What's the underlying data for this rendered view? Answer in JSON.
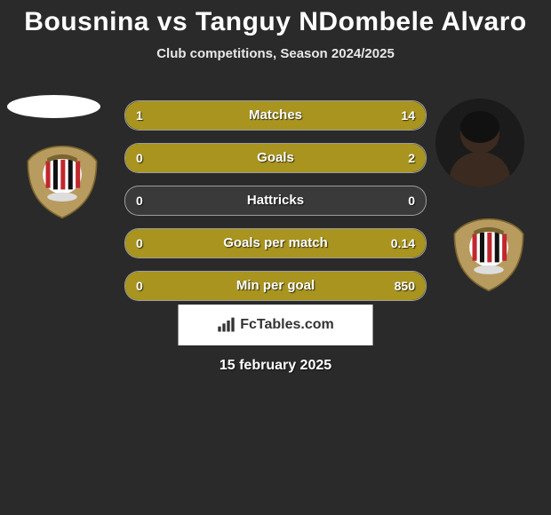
{
  "title": "Bousnina vs Tanguy NDombele Alvaro",
  "subtitle": "Club competitions, Season 2024/2025",
  "date": "15 february 2025",
  "brand": "FcTables.com",
  "colors": {
    "bar_fill": "#a8941f",
    "bg": "#2a2a2a",
    "text": "#ffffff"
  },
  "player1": {
    "name": "Bousnina",
    "avatar": "placeholder-ellipse",
    "club": "OGC Nice"
  },
  "player2": {
    "name": "Tanguy NDombele Alvaro",
    "avatar": "photo",
    "club": "OGC Nice"
  },
  "stats": [
    {
      "label": "Matches",
      "left_val": "1",
      "right_val": "14",
      "left_pct": 8,
      "right_pct": 92
    },
    {
      "label": "Goals",
      "left_val": "0",
      "right_val": "2",
      "left_pct": 0,
      "right_pct": 100
    },
    {
      "label": "Hattricks",
      "left_val": "0",
      "right_val": "0",
      "left_pct": 0,
      "right_pct": 0
    },
    {
      "label": "Goals per match",
      "left_val": "0",
      "right_val": "0.14",
      "left_pct": 0,
      "right_pct": 100
    },
    {
      "label": "Min per goal",
      "left_val": "0",
      "right_val": "850",
      "left_pct": 0,
      "right_pct": 100
    }
  ]
}
